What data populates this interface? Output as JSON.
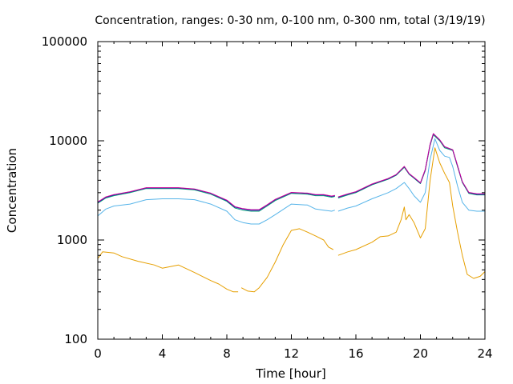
{
  "chart_data": {
    "type": "line",
    "title": "Concentration, ranges: 0-30 nm, 0-100 nm, 0-300 nm, total (3/19/19)",
    "xlabel": "Time [hour]",
    "ylabel": "Concentration",
    "xlim": [
      0,
      24
    ],
    "ylim": [
      100,
      100000
    ],
    "yscale": "log",
    "grid": false,
    "legend": "none",
    "x_ticks": [
      0,
      4,
      8,
      12,
      16,
      20,
      24
    ],
    "y_ticks": [
      100,
      1000,
      10000,
      100000
    ],
    "x_tick_labels": [
      "0",
      "4",
      "8",
      "12",
      "16",
      "20",
      "24"
    ],
    "y_tick_labels": [
      "100",
      "1000",
      "10000",
      "100000"
    ],
    "series": [
      {
        "color": "#e69f00",
        "segments": [
          [
            [
              0,
              650
            ],
            [
              0.3,
              760
            ],
            [
              1,
              740
            ],
            [
              1.5,
              680
            ],
            [
              2.5,
              610
            ],
            [
              3.5,
              560
            ],
            [
              4,
              520
            ],
            [
              5,
              560
            ],
            [
              6,
              470
            ],
            [
              7,
              390
            ],
            [
              7.5,
              360
            ],
            [
              8,
              320
            ],
            [
              8.4,
              300
            ],
            [
              8.7,
              300
            ]
          ],
          [
            [
              8.9,
              330
            ],
            [
              9.3,
              305
            ],
            [
              9.7,
              300
            ],
            [
              10,
              330
            ],
            [
              10.5,
              420
            ],
            [
              11,
              600
            ],
            [
              11.5,
              900
            ],
            [
              12,
              1250
            ],
            [
              12.5,
              1300
            ],
            [
              13,
              1200
            ],
            [
              13.5,
              1100
            ],
            [
              14,
              1000
            ],
            [
              14.3,
              850
            ],
            [
              14.6,
              800
            ]
          ],
          [
            [
              14.9,
              700
            ],
            [
              15.5,
              760
            ],
            [
              16,
              800
            ],
            [
              17,
              950
            ],
            [
              17.5,
              1080
            ],
            [
              18,
              1100
            ],
            [
              18.5,
              1200
            ],
            [
              18.8,
              1600
            ],
            [
              19,
              2150
            ],
            [
              19.1,
              1600
            ],
            [
              19.3,
              1800
            ],
            [
              19.6,
              1500
            ],
            [
              20,
              1050
            ],
            [
              20.3,
              1300
            ],
            [
              20.6,
              4000
            ],
            [
              20.9,
              8500
            ],
            [
              21.2,
              6000
            ],
            [
              21.5,
              4700
            ],
            [
              21.8,
              3800
            ],
            [
              22,
              2200
            ],
            [
              22.3,
              1200
            ],
            [
              22.6,
              700
            ],
            [
              22.9,
              450
            ],
            [
              23.3,
              410
            ],
            [
              23.7,
              430
            ],
            [
              24,
              480
            ]
          ]
        ]
      },
      {
        "color": "#56b4e9",
        "segments": [
          [
            [
              0,
              1750
            ],
            [
              0.5,
              2050
            ],
            [
              1,
              2200
            ],
            [
              2,
              2300
            ],
            [
              3,
              2550
            ],
            [
              4,
              2600
            ],
            [
              5,
              2600
            ],
            [
              6,
              2550
            ],
            [
              7,
              2300
            ],
            [
              8,
              1950
            ],
            [
              8.5,
              1600
            ],
            [
              9,
              1500
            ],
            [
              9.5,
              1450
            ],
            [
              10,
              1450
            ],
            [
              10.5,
              1600
            ],
            [
              11,
              1800
            ],
            [
              12,
              2300
            ],
            [
              13,
              2250
            ],
            [
              13.5,
              2050
            ],
            [
              14,
              2000
            ],
            [
              14.5,
              1950
            ],
            [
              14.7,
              2000
            ]
          ],
          [
            [
              14.9,
              1950
            ],
            [
              15.5,
              2100
            ],
            [
              16,
              2200
            ],
            [
              17,
              2600
            ],
            [
              18,
              3000
            ],
            [
              18.5,
              3300
            ],
            [
              19,
              3800
            ],
            [
              19.3,
              3300
            ],
            [
              19.6,
              2800
            ],
            [
              20,
              2400
            ],
            [
              20.3,
              3000
            ],
            [
              20.6,
              6500
            ],
            [
              20.9,
              10500
            ],
            [
              21.2,
              8000
            ],
            [
              21.5,
              7000
            ],
            [
              21.8,
              6800
            ],
            [
              22,
              5500
            ],
            [
              22.3,
              3500
            ],
            [
              22.6,
              2400
            ],
            [
              23,
              2000
            ],
            [
              23.5,
              1950
            ],
            [
              24,
              1950
            ]
          ]
        ]
      },
      {
        "color": "#009e73",
        "segments": [
          [
            [
              0,
              2350
            ],
            [
              0.5,
              2650
            ],
            [
              1,
              2800
            ],
            [
              2,
              3000
            ],
            [
              3,
              3300
            ],
            [
              4,
              3300
            ],
            [
              5,
              3300
            ],
            [
              6,
              3200
            ],
            [
              7,
              2900
            ],
            [
              8,
              2450
            ],
            [
              8.5,
              2100
            ],
            [
              9,
              2000
            ],
            [
              9.5,
              1950
            ],
            [
              10,
              1950
            ],
            [
              10.5,
              2200
            ],
            [
              11,
              2500
            ],
            [
              12,
              2950
            ],
            [
              13,
              2900
            ],
            [
              13.5,
              2800
            ],
            [
              14,
              2800
            ],
            [
              14.5,
              2700
            ],
            [
              14.7,
              2750
            ]
          ],
          [
            [
              14.9,
              2650
            ],
            [
              15.5,
              2850
            ],
            [
              16,
              3000
            ],
            [
              17,
              3600
            ],
            [
              18,
              4100
            ],
            [
              18.5,
              4500
            ],
            [
              19,
              5400
            ],
            [
              19.3,
              4600
            ],
            [
              19.6,
              4200
            ],
            [
              20,
              3700
            ],
            [
              20.3,
              5000
            ],
            [
              20.6,
              9000
            ],
            [
              20.8,
              11500
            ],
            [
              21.2,
              10000
            ],
            [
              21.5,
              8500
            ],
            [
              22,
              8000
            ],
            [
              22.3,
              5500
            ],
            [
              22.6,
              3800
            ],
            [
              23,
              2950
            ],
            [
              23.5,
              2850
            ],
            [
              24,
              2850
            ]
          ]
        ]
      },
      {
        "color": "#0000b2",
        "segments": [
          [
            [
              0,
              2400
            ],
            [
              0.5,
              2700
            ],
            [
              1,
              2850
            ],
            [
              2,
              3050
            ],
            [
              3,
              3350
            ],
            [
              4,
              3350
            ],
            [
              5,
              3350
            ],
            [
              6,
              3250
            ],
            [
              7,
              2950
            ],
            [
              8,
              2500
            ],
            [
              8.5,
              2150
            ],
            [
              9,
              2050
            ],
            [
              9.5,
              2000
            ],
            [
              10,
              2000
            ],
            [
              10.5,
              2250
            ],
            [
              11,
              2550
            ],
            [
              12,
              3000
            ],
            [
              13,
              2950
            ],
            [
              13.5,
              2850
            ],
            [
              14,
              2850
            ],
            [
              14.5,
              2750
            ],
            [
              14.7,
              2800
            ]
          ],
          [
            [
              14.9,
              2700
            ],
            [
              15.5,
              2900
            ],
            [
              16,
              3050
            ],
            [
              17,
              3650
            ],
            [
              18,
              4150
            ],
            [
              18.5,
              4550
            ],
            [
              19,
              5500
            ],
            [
              19.3,
              4650
            ],
            [
              19.6,
              4250
            ],
            [
              20,
              3750
            ],
            [
              20.3,
              5100
            ],
            [
              20.6,
              9200
            ],
            [
              20.8,
              11800
            ],
            [
              21.2,
              10200
            ],
            [
              21.5,
              8700
            ],
            [
              22,
              8100
            ],
            [
              22.3,
              5600
            ],
            [
              22.6,
              3850
            ],
            [
              23,
              3000
            ],
            [
              23.5,
              2900
            ],
            [
              24,
              2900
            ]
          ]
        ]
      },
      {
        "color": "#cc0099",
        "segments": [
          [
            [
              0,
              2420
            ],
            [
              0.5,
              2720
            ],
            [
              1,
              2870
            ],
            [
              2,
              3070
            ],
            [
              3,
              3370
            ],
            [
              4,
              3370
            ],
            [
              5,
              3370
            ],
            [
              6,
              3270
            ],
            [
              7,
              2970
            ],
            [
              8,
              2520
            ],
            [
              8.5,
              2170
            ],
            [
              9,
              2070
            ],
            [
              9.5,
              2020
            ],
            [
              10,
              2020
            ],
            [
              10.5,
              2270
            ],
            [
              11,
              2570
            ],
            [
              12,
              3020
            ],
            [
              13,
              2970
            ],
            [
              13.5,
              2870
            ],
            [
              14,
              2870
            ],
            [
              14.5,
              2770
            ],
            [
              14.7,
              2820
            ]
          ],
          [
            [
              14.9,
              2720
            ],
            [
              15.5,
              2920
            ],
            [
              16,
              3070
            ],
            [
              17,
              3670
            ],
            [
              18,
              4170
            ],
            [
              18.5,
              4570
            ],
            [
              19,
              5520
            ],
            [
              19.3,
              4670
            ],
            [
              19.6,
              4270
            ],
            [
              20,
              3770
            ],
            [
              20.3,
              5120
            ],
            [
              20.6,
              9220
            ],
            [
              20.8,
              11820
            ],
            [
              21.2,
              10220
            ],
            [
              21.5,
              8720
            ],
            [
              22,
              8120
            ],
            [
              22.3,
              5620
            ],
            [
              22.6,
              3870
            ],
            [
              23,
              3020
            ],
            [
              23.5,
              2920
            ],
            [
              24,
              2920
            ]
          ]
        ]
      }
    ]
  }
}
